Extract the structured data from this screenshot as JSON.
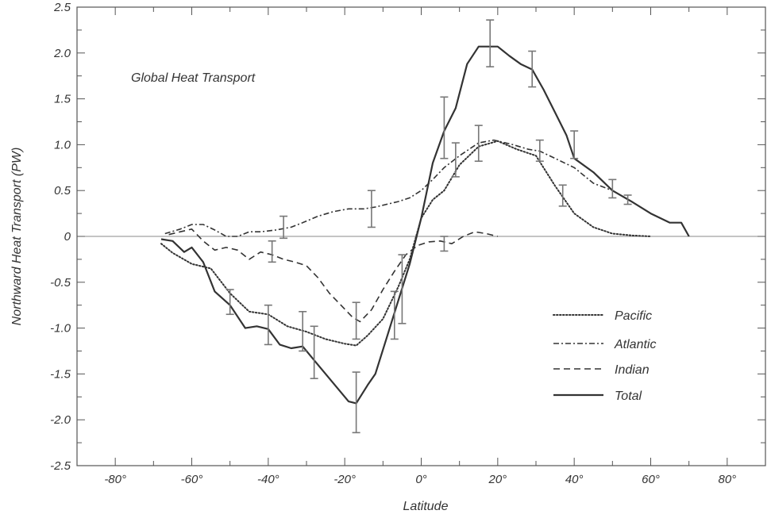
{
  "chart_data": {
    "type": "line",
    "title": "",
    "annotation": "Global Heat Transport",
    "xlabel": "Latitude",
    "ylabel": "Northward Heat Transport (PW)",
    "xlim": [
      -90,
      90
    ],
    "ylim": [
      -2.5,
      2.5
    ],
    "x_ticks": [
      -80,
      -60,
      -40,
      -20,
      0,
      20,
      40,
      60,
      80
    ],
    "x_tick_labels": [
      "-80°",
      "-60°",
      "-40°",
      "-20°",
      "0°",
      "20°",
      "40°",
      "60°",
      "80°"
    ],
    "y_ticks": [
      2.5,
      2.0,
      1.5,
      1.0,
      0.5,
      0,
      -0.5,
      -1.0,
      -1.5,
      -2.0,
      -2.5
    ],
    "y_tick_labels": [
      "2.5",
      "2.0",
      "1.5",
      "1.0",
      "0.5",
      "0",
      "-0.5",
      "-1.0",
      "-1.5",
      "-2.0",
      "-2.5"
    ],
    "zero_line": true,
    "grid": false,
    "legend_position": "bottom-right",
    "series": [
      {
        "name": "Pacific",
        "line_style": "dotted",
        "x": [
          -68,
          -65,
          -60,
          -55,
          -50,
          -45,
          -40,
          -35,
          -30,
          -25,
          -20,
          -17,
          -14,
          -10,
          -6,
          -3,
          0,
          3,
          6,
          10,
          15,
          20,
          25,
          30,
          35,
          40,
          45,
          50,
          55,
          60
        ],
        "y": [
          -0.08,
          -0.18,
          -0.3,
          -0.35,
          -0.62,
          -0.82,
          -0.85,
          -0.98,
          -1.04,
          -1.12,
          -1.17,
          -1.19,
          -1.08,
          -0.9,
          -0.55,
          -0.25,
          0.2,
          0.4,
          0.5,
          0.78,
          0.98,
          1.04,
          0.95,
          0.88,
          0.55,
          0.25,
          0.1,
          0.03,
          0.01,
          0.0
        ]
      },
      {
        "name": "Atlantic",
        "line_style": "dash-dot",
        "x": [
          -67,
          -63,
          -60,
          -57,
          -54,
          -51,
          -48,
          -45,
          -42,
          -38,
          -34,
          -31,
          -27,
          -23,
          -19,
          -15,
          -12,
          -9,
          -6,
          -3,
          0,
          3,
          6,
          10,
          15,
          19,
          24,
          28,
          31,
          35,
          40,
          45,
          50,
          55
        ],
        "y": [
          0.03,
          0.08,
          0.13,
          0.13,
          0.07,
          0.0,
          0.0,
          0.05,
          0.05,
          0.07,
          0.1,
          0.15,
          0.22,
          0.27,
          0.3,
          0.3,
          0.32,
          0.35,
          0.38,
          0.42,
          0.5,
          0.62,
          0.75,
          0.88,
          1.02,
          1.05,
          1.0,
          0.95,
          0.93,
          0.85,
          0.75,
          0.58,
          0.5,
          0.38
        ]
      },
      {
        "name": "Indian",
        "line_style": "dashed",
        "x": [
          -66,
          -63,
          -60,
          -57,
          -54,
          -51,
          -48,
          -45,
          -42,
          -39,
          -36,
          -33,
          -30,
          -27,
          -24,
          -21,
          -18,
          -16,
          -13,
          -10,
          -7,
          -4,
          -1,
          2,
          5,
          8,
          11,
          14,
          17,
          20
        ],
        "y": [
          0.02,
          0.05,
          0.08,
          -0.05,
          -0.15,
          -0.12,
          -0.15,
          -0.25,
          -0.17,
          -0.2,
          -0.25,
          -0.28,
          -0.32,
          -0.45,
          -0.62,
          -0.75,
          -0.88,
          -0.93,
          -0.8,
          -0.58,
          -0.38,
          -0.2,
          -0.1,
          -0.06,
          -0.05,
          -0.08,
          0.0,
          0.05,
          0.03,
          0.0
        ]
      },
      {
        "name": "Total",
        "line_style": "solid",
        "x": [
          -68,
          -65,
          -62,
          -60,
          -57,
          -54,
          -50,
          -46,
          -43,
          -40,
          -37,
          -34,
          -31,
          -28,
          -25,
          -22,
          -19,
          -17,
          -14,
          -12,
          -9,
          -6,
          -3,
          0,
          3,
          6,
          9,
          12,
          15,
          17,
          20,
          23,
          26,
          29,
          32,
          35,
          38,
          40,
          45,
          50,
          55,
          60,
          65,
          68,
          70
        ],
        "y": [
          -0.03,
          -0.05,
          -0.17,
          -0.12,
          -0.28,
          -0.6,
          -0.75,
          -1.0,
          -0.98,
          -1.01,
          -1.18,
          -1.22,
          -1.2,
          -1.35,
          -1.5,
          -1.65,
          -1.8,
          -1.82,
          -1.62,
          -1.5,
          -1.1,
          -0.7,
          -0.3,
          0.2,
          0.8,
          1.15,
          1.4,
          1.88,
          2.07,
          2.07,
          2.07,
          1.97,
          1.88,
          1.82,
          1.6,
          1.35,
          1.1,
          0.85,
          0.7,
          0.5,
          0.38,
          0.25,
          0.15,
          0.15,
          0.0
        ]
      }
    ],
    "error_bars": [
      {
        "x": -50,
        "low": -0.85,
        "high": -0.58
      },
      {
        "x": -40,
        "low": -1.18,
        "high": -0.75
      },
      {
        "x": -39,
        "low": -0.28,
        "high": -0.05
      },
      {
        "x": -31,
        "low": -1.25,
        "high": -0.82
      },
      {
        "x": -28,
        "low": -1.55,
        "high": -0.98
      },
      {
        "x": -17,
        "low": -2.14,
        "high": -1.48
      },
      {
        "x": -17,
        "low": -1.12,
        "high": -0.72
      },
      {
        "x": -13,
        "low": 0.1,
        "high": 0.5
      },
      {
        "x": -36,
        "low": -0.02,
        "high": 0.22
      },
      {
        "x": -7,
        "low": -1.12,
        "high": -0.6
      },
      {
        "x": -5,
        "low": -0.95,
        "high": -0.2
      },
      {
        "x": 6,
        "low": 0.85,
        "high": 1.52
      },
      {
        "x": 6,
        "low": -0.16,
        "high": 0.0
      },
      {
        "x": 9,
        "low": 0.65,
        "high": 1.02
      },
      {
        "x": 15,
        "low": 0.82,
        "high": 1.21
      },
      {
        "x": 18,
        "low": 1.85,
        "high": 2.36
      },
      {
        "x": 29,
        "low": 1.63,
        "high": 2.02
      },
      {
        "x": 31,
        "low": 0.82,
        "high": 1.05
      },
      {
        "x": 37,
        "low": 0.33,
        "high": 0.56
      },
      {
        "x": 40,
        "low": 0.85,
        "high": 1.15
      },
      {
        "x": 50,
        "low": 0.42,
        "high": 0.62
      },
      {
        "x": 54,
        "low": 0.35,
        "high": 0.45
      }
    ]
  }
}
